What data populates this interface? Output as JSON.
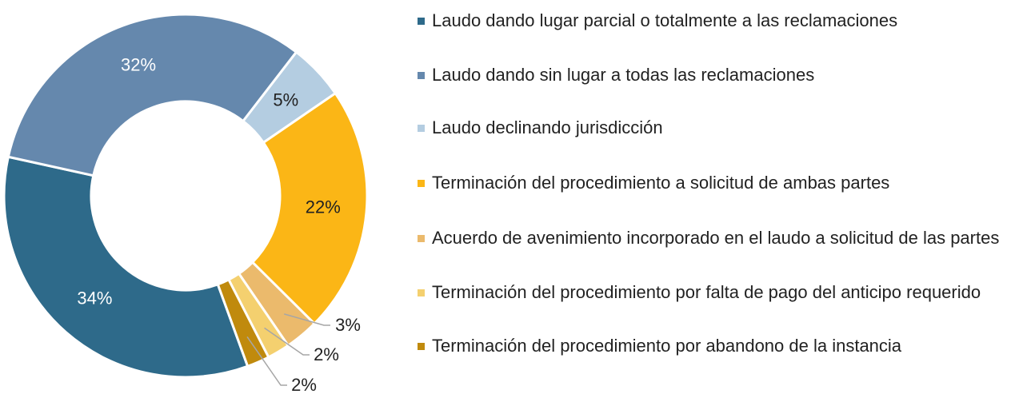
{
  "chart_data": {
    "type": "pie",
    "categories": [
      "Laudo dando lugar parcial o totalmente a las reclamaciones",
      "Laudo dando sin lugar a todas las reclamaciones",
      "Laudo declinando jurisdicción",
      "Terminación del procedimiento a solicitud de ambas partes",
      "Acuerdo de avenimiento incorporado en el laudo a solicitud de las partes",
      "Terminación del procedimiento por falta de pago del anticipo requerido",
      "Terminación del procedimiento por abandono de la instancia"
    ],
    "values": [
      34,
      32,
      5,
      22,
      3,
      2,
      2
    ],
    "value_labels": [
      "34%",
      "32%",
      "5%",
      "22%",
      "3%",
      "2%",
      "2%"
    ],
    "colors": [
      "#2e6a8a",
      "#6588ad",
      "#b4cde1",
      "#fbb616",
      "#ebba6c",
      "#f4d06f",
      "#c08a0d"
    ],
    "legend": "right"
  }
}
